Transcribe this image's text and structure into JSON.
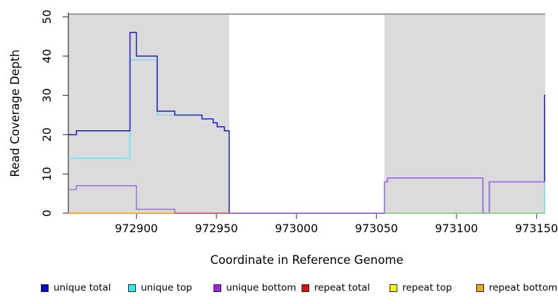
{
  "chart_data": {
    "type": "line",
    "subtype": "step-coverage-plot",
    "title": "",
    "xlabel": "Coordinate in Reference Genome",
    "ylabel": "Read Coverage Depth",
    "xlim": [
      972857.5,
      973155.5
    ],
    "ylim": [
      0,
      50.7
    ],
    "x_ticks": [
      972900,
      972950,
      973000,
      973050,
      973100,
      973150
    ],
    "y_ticks": [
      0,
      10,
      20,
      30,
      40,
      50
    ],
    "grid": false,
    "shaded_regions": [
      {
        "x0": 972857.5,
        "x1": 972958,
        "color": "#dbdbdb"
      },
      {
        "x0": 973055,
        "x1": 973155.5,
        "color": "#dbdbdb"
      }
    ],
    "top_boundary_line": {
      "y": 50.7,
      "color": "#8e8e8e"
    },
    "series": [
      {
        "name": "repeat total",
        "color": "#ff0000",
        "line_color": "#ff2020",
        "steps": [
          [
            972857.5,
            0
          ]
        ]
      },
      {
        "name": "repeat top",
        "color": "#ffff00",
        "line_color": "#ffee00",
        "steps": [
          [
            972857.5,
            0
          ]
        ]
      },
      {
        "name": "repeat bottom",
        "color": "#ffa500",
        "line_color": "#ff9d26",
        "steps": [
          [
            972857.5,
            0
          ]
        ]
      },
      {
        "name": "unique top",
        "color": "#00ffff",
        "line_color": "#6fe2ef",
        "steps": [
          [
            972857.5,
            14
          ],
          [
            972896,
            39
          ],
          [
            972913,
            25
          ],
          [
            972941,
            24
          ],
          [
            972948,
            23
          ],
          [
            972950.5,
            22
          ],
          [
            972955,
            21
          ],
          [
            972958,
            0
          ],
          [
            973155,
            22
          ]
        ]
      },
      {
        "name": "unique total",
        "color": "#0000ff",
        "line_color": "#2525cd",
        "steps": [
          [
            972857.5,
            20
          ],
          [
            972862.5,
            21
          ],
          [
            972896,
            46
          ],
          [
            972900,
            40
          ],
          [
            972913,
            26
          ],
          [
            972924,
            25
          ],
          [
            972941,
            24
          ],
          [
            972948,
            23
          ],
          [
            972950.5,
            22
          ],
          [
            972955,
            21
          ],
          [
            972958,
            0
          ],
          [
            973055,
            8
          ],
          [
            973057,
            9
          ],
          [
            973116.5,
            0
          ],
          [
            973120.5,
            8
          ],
          [
            973155,
            30
          ]
        ]
      },
      {
        "name": "unique bottom",
        "color": "#a020f0",
        "line_color": "#9e72e9",
        "steps": [
          [
            972857.5,
            6
          ],
          [
            972862.5,
            7
          ],
          [
            972900,
            1
          ],
          [
            972924,
            0
          ],
          [
            973055,
            8
          ],
          [
            973057,
            9
          ],
          [
            973116.5,
            0
          ],
          [
            973120.5,
            8
          ]
        ]
      }
    ],
    "baseline_overlays": [
      {
        "x0": 972924,
        "x1": 972958,
        "y": 0,
        "color": "#da5468"
      },
      {
        "x0": 973055,
        "x1": 973155.5,
        "y": 0,
        "color": "#8ecd90"
      }
    ],
    "legend": {
      "position": "bottom",
      "items": [
        {
          "label": "unique total",
          "color": "#0000ff"
        },
        {
          "label": "unique top",
          "color": "#00ffff"
        },
        {
          "label": "unique bottom",
          "color": "#a020f0"
        },
        {
          "label": "repeat total",
          "color": "#ff0000"
        },
        {
          "label": "repeat top",
          "color": "#ffff00"
        },
        {
          "label": "repeat bottom",
          "color": "#ffa500"
        }
      ]
    }
  }
}
